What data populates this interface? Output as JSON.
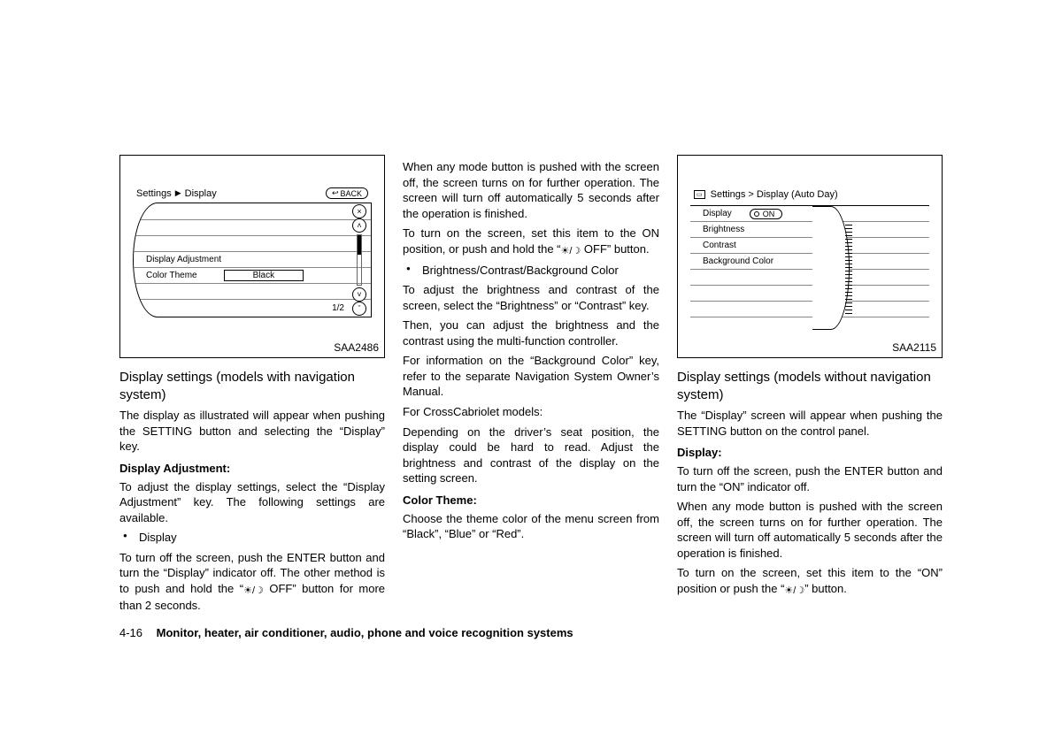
{
  "figure1": {
    "id_label": "SAA2486",
    "breadcrumb": {
      "root": "Settings",
      "leaf": "Display"
    },
    "back_label": "BACK",
    "rows": {
      "adjustment": "Display Adjustment",
      "color_theme_label": "Color Theme",
      "color_theme_value": "Black"
    },
    "pager": "1/2"
  },
  "figure2": {
    "id_label": "SAA2115",
    "header_text": "Settings > Display (Auto Day)",
    "rows": {
      "display_label": "Display",
      "display_toggle": "ON",
      "brightness": "Brightness",
      "contrast": "Contrast",
      "bg_color": "Background Color"
    }
  },
  "col1": {
    "h": "Display settings (models with navigation system)",
    "p1": "The display as illustrated will appear when pushing the SETTING button and selecting the “Display” key.",
    "sub_adjust": "Display Adjustment:",
    "p2": "To adjust the display settings, select the “Display Adjustment” key. The following settings are available.",
    "bul_display": "Display",
    "p3a": "To turn off the screen, push the ENTER button and turn the “Display” indicator off. The other method is to push and hold the “",
    "p3b": " OFF” button for more than 2 seconds."
  },
  "col2": {
    "p1": "When any mode button is pushed with the screen off, the screen turns on for further operation. The screen will turn off automatically 5 seconds after the operation is finished.",
    "p2a": "To turn on the screen, set this item to the ON position, or push and hold the “",
    "p2b": " OFF” button.",
    "bul_bcb": "Brightness/Contrast/Background Color",
    "p3": "To adjust the brightness and contrast of the screen, select the “Brightness” or “Contrast” key.",
    "p4": "Then, you can adjust the brightness and the contrast using the multi-function controller.",
    "p5": "For information on the “Background Color” key, refer to the separate Navigation System Owner’s Manual.",
    "p6": "For CrossCabriolet models:",
    "p7": "Depending on the driver’s seat position, the display could be hard to read. Adjust the brightness and contrast of the display on the setting screen.",
    "sub_color": "Color Theme:",
    "p8": "Choose the theme color of the menu screen from “Black”, “Blue” or “Red”."
  },
  "col3": {
    "h": "Display settings (models without navigation system)",
    "p1": "The “Display” screen will appear when pushing the SETTING button on the control panel.",
    "sub_display": "Display:",
    "p2": "To turn off the screen, push the ENTER button and turn the “ON” indicator off.",
    "p3": "When any mode button is pushed with the screen off, the screen turns on for further operation. The screen will turn off automatically 5 seconds after the operation is finished.",
    "p4a": "To turn on the screen, set this item to the “ON” position or push the “",
    "p4b": "” button."
  },
  "footer": {
    "page": "4-16",
    "chapter": "Monitor, heater, air conditioner, audio, phone and voice recognition systems"
  },
  "sun_glyph": "☀︎/☽"
}
